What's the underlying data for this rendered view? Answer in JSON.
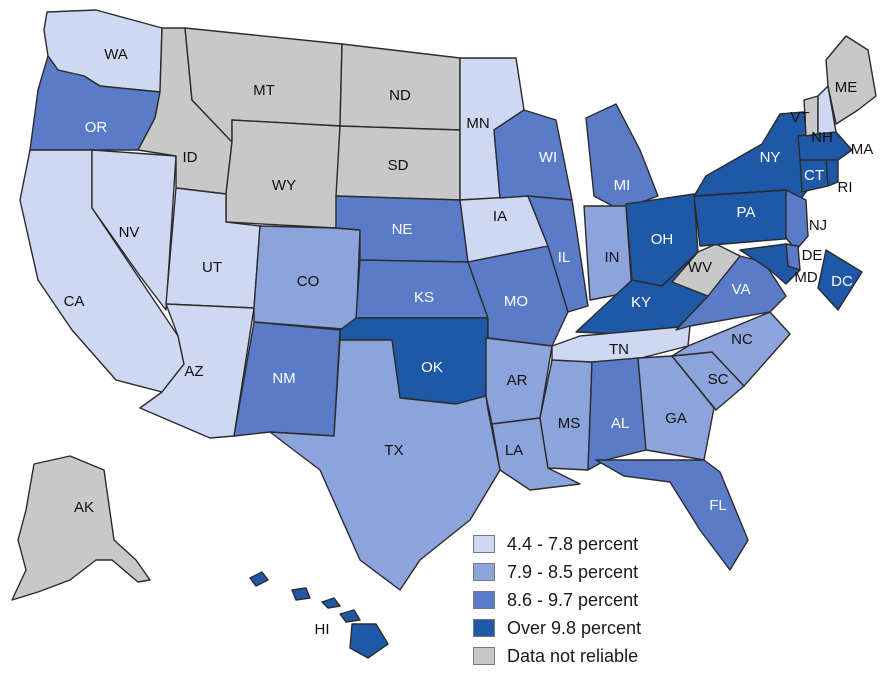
{
  "colors": {
    "low": "#cfd8f2",
    "mid": "#8ca3dc",
    "high": "#5a7cc8",
    "top": "#1f58a6",
    "none": "#c8c8c8",
    "label_dark": "#111111",
    "label_light": "#ffffff"
  },
  "legend": [
    {
      "label": "4.4 - 7.8 percent",
      "category": "low"
    },
    {
      "label": "7.9 - 8.5 percent",
      "category": "mid"
    },
    {
      "label": "8.6 - 9.7 percent",
      "category": "high"
    },
    {
      "label": "Over 9.8 percent",
      "category": "top"
    },
    {
      "label": "Data not reliable",
      "category": "none"
    }
  ],
  "states": [
    {
      "abbr": "WA",
      "category": "low"
    },
    {
      "abbr": "OR",
      "category": "high"
    },
    {
      "abbr": "CA",
      "category": "low"
    },
    {
      "abbr": "NV",
      "category": "low"
    },
    {
      "abbr": "ID",
      "category": "none"
    },
    {
      "abbr": "MT",
      "category": "none"
    },
    {
      "abbr": "WY",
      "category": "none"
    },
    {
      "abbr": "UT",
      "category": "low"
    },
    {
      "abbr": "AZ",
      "category": "low"
    },
    {
      "abbr": "CO",
      "category": "mid"
    },
    {
      "abbr": "NM",
      "category": "high"
    },
    {
      "abbr": "ND",
      "category": "none"
    },
    {
      "abbr": "SD",
      "category": "none"
    },
    {
      "abbr": "NE",
      "category": "high"
    },
    {
      "abbr": "KS",
      "category": "high"
    },
    {
      "abbr": "OK",
      "category": "top"
    },
    {
      "abbr": "TX",
      "category": "mid"
    },
    {
      "abbr": "MN",
      "category": "low"
    },
    {
      "abbr": "IA",
      "category": "low"
    },
    {
      "abbr": "MO",
      "category": "high"
    },
    {
      "abbr": "AR",
      "category": "mid"
    },
    {
      "abbr": "LA",
      "category": "mid"
    },
    {
      "abbr": "WI",
      "category": "high"
    },
    {
      "abbr": "IL",
      "category": "high"
    },
    {
      "abbr": "MI",
      "category": "high"
    },
    {
      "abbr": "IN",
      "category": "mid"
    },
    {
      "abbr": "OH",
      "category": "top"
    },
    {
      "abbr": "KY",
      "category": "top"
    },
    {
      "abbr": "TN",
      "category": "low"
    },
    {
      "abbr": "MS",
      "category": "mid"
    },
    {
      "abbr": "AL",
      "category": "high"
    },
    {
      "abbr": "GA",
      "category": "mid"
    },
    {
      "abbr": "FL",
      "category": "high"
    },
    {
      "abbr": "SC",
      "category": "mid"
    },
    {
      "abbr": "NC",
      "category": "mid"
    },
    {
      "abbr": "VA",
      "category": "high"
    },
    {
      "abbr": "WV",
      "category": "none"
    },
    {
      "abbr": "PA",
      "category": "top"
    },
    {
      "abbr": "NY",
      "category": "top"
    },
    {
      "abbr": "NJ",
      "category": "high"
    },
    {
      "abbr": "DE",
      "category": "high"
    },
    {
      "abbr": "MD",
      "category": "top"
    },
    {
      "abbr": "DC",
      "category": "top"
    },
    {
      "abbr": "CT",
      "category": "top"
    },
    {
      "abbr": "RI",
      "category": "top"
    },
    {
      "abbr": "MA",
      "category": "top"
    },
    {
      "abbr": "VT",
      "category": "none"
    },
    {
      "abbr": "NH",
      "category": "low"
    },
    {
      "abbr": "ME",
      "category": "none"
    },
    {
      "abbr": "AK",
      "category": "none"
    },
    {
      "abbr": "HI",
      "category": "top"
    }
  ]
}
